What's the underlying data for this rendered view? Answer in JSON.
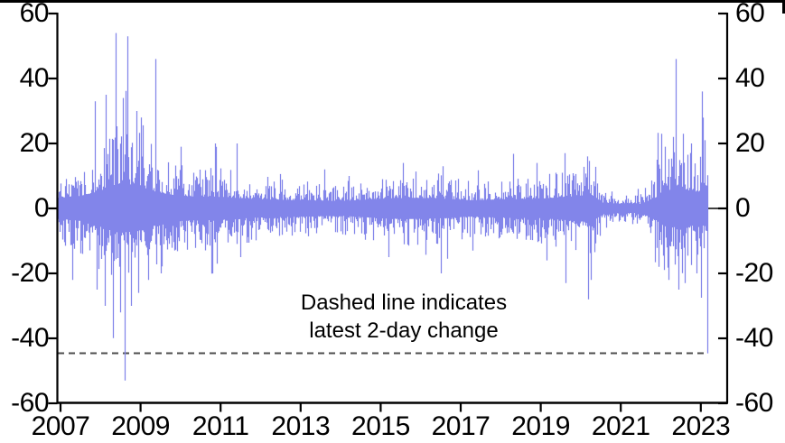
{
  "chart_data": {
    "type": "bar",
    "series_name": "2-day change",
    "title": "",
    "x_axis": {
      "min": 2006.93,
      "max": 2023.7,
      "tick_values": [
        2007,
        2009,
        2011,
        2013,
        2015,
        2017,
        2019,
        2021,
        2023
      ],
      "tick_labels": [
        "2007",
        "2009",
        "2011",
        "2013",
        "2015",
        "2017",
        "2019",
        "2021",
        "2023"
      ]
    },
    "y_axis": {
      "min": -60,
      "max": 60,
      "tick_values": [
        60,
        40,
        20,
        0,
        -20,
        -40,
        -60
      ],
      "tick_labels": [
        "60",
        "40",
        "20",
        "0",
        "-20",
        "-40",
        "-60"
      ],
      "mirrored_right_axis": true
    },
    "grid": false,
    "legend": null,
    "annotation": {
      "line1": "Dashed line indicates",
      "line2": "latest 2-day change"
    },
    "dashed_line_value": -44.6,
    "latest_bar": {
      "x": 2023.165,
      "value": -44.6
    },
    "data_start": 2006.93,
    "data_end": 2023.17,
    "volatility_envelope": [
      [
        2007.0,
        6.5
      ],
      [
        2007.6,
        8
      ],
      [
        2008.0,
        11
      ],
      [
        2008.45,
        15
      ],
      [
        2008.9,
        14
      ],
      [
        2009.4,
        10
      ],
      [
        2010.0,
        7.5
      ],
      [
        2011.0,
        7
      ],
      [
        2012.0,
        5.5
      ],
      [
        2013.0,
        5
      ],
      [
        2014.0,
        4.5
      ],
      [
        2015.0,
        6
      ],
      [
        2015.8,
        6.5
      ],
      [
        2016.6,
        6
      ],
      [
        2017.2,
        5
      ],
      [
        2018.0,
        5.5
      ],
      [
        2019.0,
        6
      ],
      [
        2019.8,
        7.5
      ],
      [
        2020.25,
        8.5
      ],
      [
        2020.55,
        3.5
      ],
      [
        2021.0,
        2.8
      ],
      [
        2021.5,
        2.8
      ],
      [
        2021.85,
        6.5
      ],
      [
        2022.1,
        11
      ],
      [
        2022.5,
        12
      ],
      [
        2022.8,
        10.5
      ],
      [
        2023.05,
        10
      ],
      [
        2023.17,
        12
      ]
    ],
    "spikes": [
      [
        2007.3,
        -22
      ],
      [
        2007.86,
        33
      ],
      [
        2007.9,
        -25
      ],
      [
        2008.1,
        -30
      ],
      [
        2008.13,
        35
      ],
      [
        2008.3,
        -28
      ],
      [
        2008.38,
        54
      ],
      [
        2008.5,
        -32
      ],
      [
        2008.55,
        34
      ],
      [
        2008.6,
        -53
      ],
      [
        2008.67,
        53
      ],
      [
        2008.75,
        -30
      ],
      [
        2008.9,
        30
      ],
      [
        2008.95,
        -26
      ],
      [
        2009.0,
        28
      ],
      [
        2009.2,
        -22
      ],
      [
        2009.37,
        46
      ],
      [
        2009.5,
        -20
      ],
      [
        2010.0,
        19
      ],
      [
        2010.85,
        20
      ],
      [
        2010.9,
        -17
      ],
      [
        2011.4,
        20
      ],
      [
        2011.5,
        -15
      ],
      [
        2013.6,
        12
      ],
      [
        2014.2,
        10
      ],
      [
        2015.2,
        -15
      ],
      [
        2015.55,
        14
      ],
      [
        2016.5,
        -20
      ],
      [
        2016.55,
        13
      ],
      [
        2017.3,
        -13
      ],
      [
        2018.9,
        14
      ],
      [
        2019.15,
        -16
      ],
      [
        2019.6,
        17
      ],
      [
        2019.62,
        -23
      ],
      [
        2020.15,
        16
      ],
      [
        2020.18,
        -28
      ],
      [
        2020.25,
        -22
      ],
      [
        2021.9,
        15
      ],
      [
        2021.95,
        -18
      ],
      [
        2022.0,
        23
      ],
      [
        2022.2,
        -22
      ],
      [
        2022.3,
        22
      ],
      [
        2022.37,
        46
      ],
      [
        2022.45,
        -25
      ],
      [
        2022.55,
        23
      ],
      [
        2022.6,
        -23
      ],
      [
        2022.75,
        20
      ],
      [
        2022.9,
        -20
      ],
      [
        2023.03,
        36
      ],
      [
        2023.1,
        21
      ],
      [
        2023.165,
        -44.6
      ]
    ],
    "colors": {
      "bar": "#8285EA",
      "axis": "#000000",
      "dashed": "#4d4d4d",
      "text": "#000000",
      "background": "#ffffff"
    },
    "render": {
      "seed": 7
    }
  }
}
